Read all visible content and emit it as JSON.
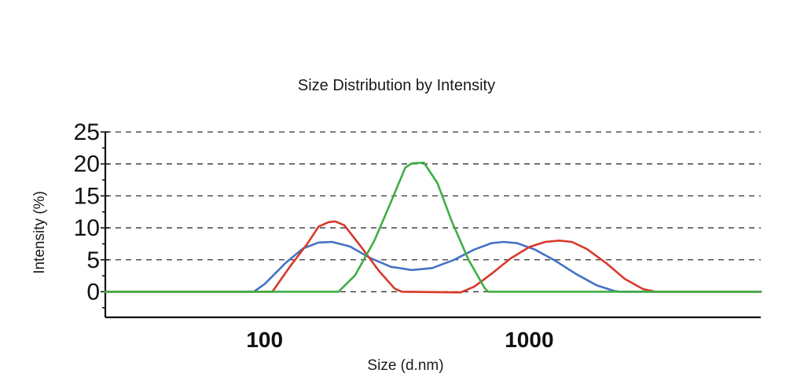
{
  "chart_data": {
    "type": "line",
    "title": "Size Distribution by Intensity",
    "xlabel": "Size (d.nm)",
    "ylabel": "Intensity (%)",
    "xscale": "log",
    "xlim": [
      25,
      7500
    ],
    "ylim": [
      -4,
      25
    ],
    "x_ticks": [
      {
        "value": 100,
        "label": "100"
      },
      {
        "value": 1000,
        "label": "1000"
      }
    ],
    "y_ticks": [
      {
        "value": 0,
        "label": "0"
      },
      {
        "value": 5,
        "label": "5"
      },
      {
        "value": 10,
        "label": "10"
      },
      {
        "value": 15,
        "label": "15"
      },
      {
        "value": 20,
        "label": "20"
      },
      {
        "value": 25,
        "label": "25"
      }
    ],
    "grid": "horizontal dashed",
    "series": [
      {
        "color": "#4472c4",
        "points": [
          [
            25,
            0
          ],
          [
            91,
            0
          ],
          [
            100,
            1.2
          ],
          [
            120,
            4.5
          ],
          [
            140,
            6.8
          ],
          [
            160,
            7.7
          ],
          [
            180,
            7.8
          ],
          [
            210,
            7.1
          ],
          [
            250,
            5.3
          ],
          [
            300,
            3.9
          ],
          [
            360,
            3.4
          ],
          [
            430,
            3.7
          ],
          [
            520,
            5.0
          ],
          [
            620,
            6.6
          ],
          [
            720,
            7.6
          ],
          [
            800,
            7.8
          ],
          [
            900,
            7.6
          ],
          [
            1050,
            6.6
          ],
          [
            1250,
            4.9
          ],
          [
            1500,
            2.8
          ],
          [
            1800,
            1.0
          ],
          [
            2100,
            0.1
          ],
          [
            2200,
            0
          ],
          [
            7500,
            0
          ]
        ]
      },
      {
        "color": "#d9382a",
        "points": [
          [
            25,
            0
          ],
          [
            107,
            0
          ],
          [
            125,
            4.0
          ],
          [
            145,
            7.5
          ],
          [
            160,
            10.2
          ],
          [
            175,
            10.9
          ],
          [
            185,
            11.0
          ],
          [
            200,
            10.4
          ],
          [
            230,
            7.2
          ],
          [
            270,
            3.3
          ],
          [
            310,
            0.5
          ],
          [
            330,
            0
          ],
          [
            550,
            -0.1
          ],
          [
            620,
            0.8
          ],
          [
            720,
            2.8
          ],
          [
            850,
            5.2
          ],
          [
            1000,
            7.0
          ],
          [
            1150,
            7.8
          ],
          [
            1300,
            8.0
          ],
          [
            1450,
            7.8
          ],
          [
            1650,
            6.7
          ],
          [
            1950,
            4.5
          ],
          [
            2300,
            2.0
          ],
          [
            2700,
            0.4
          ],
          [
            3000,
            0
          ],
          [
            7500,
            0
          ]
        ]
      },
      {
        "color": "#3fae44",
        "points": [
          [
            25,
            0
          ],
          [
            190,
            0
          ],
          [
            220,
            2.6
          ],
          [
            260,
            8.0
          ],
          [
            300,
            14.0
          ],
          [
            340,
            19.4
          ],
          [
            360,
            20.1
          ],
          [
            400,
            20.2
          ],
          [
            450,
            17.0
          ],
          [
            510,
            11.0
          ],
          [
            590,
            5.0
          ],
          [
            680,
            0.5
          ],
          [
            700,
            0
          ],
          [
            7500,
            0
          ]
        ]
      }
    ]
  }
}
